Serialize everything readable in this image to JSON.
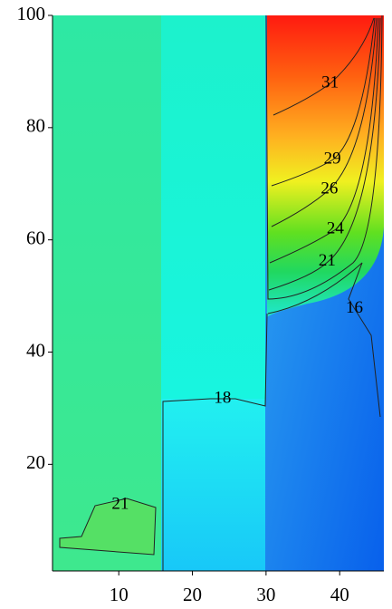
{
  "chart_data": {
    "type": "contour",
    "xlim": [
      1,
      46
    ],
    "ylim": [
      1,
      100
    ],
    "xticks": [
      10,
      20,
      30,
      40
    ],
    "yticks": [
      20,
      40,
      60,
      80,
      100
    ],
    "contour_labels": [
      {
        "value": 31,
        "x": 38.7,
        "y": 87.9
      },
      {
        "value": 29,
        "x": 39.0,
        "y": 74.3
      },
      {
        "value": 26,
        "x": 38.6,
        "y": 69.0
      },
      {
        "value": 24,
        "x": 39.4,
        "y": 61.9
      },
      {
        "value": 21,
        "x": 38.3,
        "y": 56.1
      },
      {
        "value": 16,
        "x": 42.0,
        "y": 47.7
      },
      {
        "value": 18,
        "x": 24.1,
        "y": 31.7
      },
      {
        "value": 21,
        "x": 10.2,
        "y": 12.8
      }
    ]
  }
}
